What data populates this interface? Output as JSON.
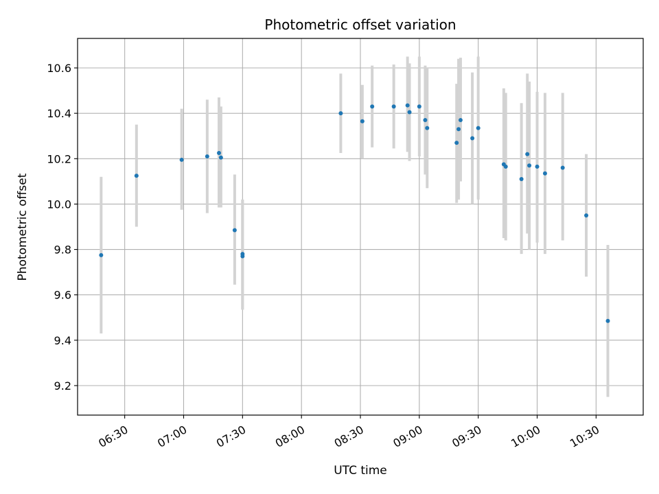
{
  "chart_data": {
    "type": "scatter",
    "title": "Photometric offset variation",
    "xlabel": "UTC time",
    "ylabel": "Photometric offset",
    "grid": true,
    "xlim": [
      "06:06",
      "10:54"
    ],
    "ylim": [
      9.07,
      10.73
    ],
    "x_ticks": [
      "06:30",
      "07:00",
      "07:30",
      "08:00",
      "08:30",
      "09:00",
      "09:30",
      "10:00",
      "10:30"
    ],
    "y_ticks": [
      9.2,
      9.4,
      9.6,
      9.8,
      10.0,
      10.2,
      10.4,
      10.6
    ],
    "colors": {
      "points": "#1f77b4",
      "errorbars": "#d3d3d3",
      "grid": "#b0b0b0"
    },
    "points": [
      {
        "x": "06:18",
        "y": 9.775,
        "ylo": 9.43,
        "yhi": 10.12
      },
      {
        "x": "06:36",
        "y": 10.125,
        "ylo": 9.9,
        "yhi": 10.35
      },
      {
        "x": "06:59",
        "y": 10.195,
        "ylo": 9.975,
        "yhi": 10.42
      },
      {
        "x": "07:12",
        "y": 10.21,
        "ylo": 9.96,
        "yhi": 10.46
      },
      {
        "x": "07:18",
        "y": 10.225,
        "ylo": 9.985,
        "yhi": 10.47
      },
      {
        "x": "07:19",
        "y": 10.205,
        "ylo": 9.985,
        "yhi": 10.43
      },
      {
        "x": "07:26",
        "y": 9.885,
        "ylo": 9.645,
        "yhi": 10.13
      },
      {
        "x": "07:30",
        "y": 9.78,
        "ylo": 9.535,
        "yhi": 10.02
      },
      {
        "x": "07:30",
        "y": 9.77,
        "ylo": 9.535,
        "yhi": 10.02
      },
      {
        "x": "08:20",
        "y": 10.4,
        "ylo": 10.225,
        "yhi": 10.575
      },
      {
        "x": "08:31",
        "y": 10.365,
        "ylo": 10.2,
        "yhi": 10.525
      },
      {
        "x": "08:36",
        "y": 10.43,
        "ylo": 10.25,
        "yhi": 10.61
      },
      {
        "x": "08:47",
        "y": 10.43,
        "ylo": 10.245,
        "yhi": 10.615
      },
      {
        "x": "08:54",
        "y": 10.435,
        "ylo": 10.23,
        "yhi": 10.65
      },
      {
        "x": "08:55",
        "y": 10.405,
        "ylo": 10.19,
        "yhi": 10.62
      },
      {
        "x": "09:00",
        "y": 10.43,
        "ylo": 10.21,
        "yhi": 10.65
      },
      {
        "x": "09:03",
        "y": 10.37,
        "ylo": 10.13,
        "yhi": 10.61
      },
      {
        "x": "09:04",
        "y": 10.335,
        "ylo": 10.07,
        "yhi": 10.6
      },
      {
        "x": "09:19",
        "y": 10.27,
        "ylo": 10.005,
        "yhi": 10.53
      },
      {
        "x": "09:20",
        "y": 10.33,
        "ylo": 10.02,
        "yhi": 10.64
      },
      {
        "x": "09:21",
        "y": 10.37,
        "ylo": 10.1,
        "yhi": 10.645
      },
      {
        "x": "09:27",
        "y": 10.29,
        "ylo": 10.0,
        "yhi": 10.58
      },
      {
        "x": "09:30",
        "y": 10.335,
        "ylo": 10.02,
        "yhi": 10.65
      },
      {
        "x": "09:43",
        "y": 10.175,
        "ylo": 9.85,
        "yhi": 10.51
      },
      {
        "x": "09:44",
        "y": 10.165,
        "ylo": 9.84,
        "yhi": 10.49
      },
      {
        "x": "09:52",
        "y": 10.11,
        "ylo": 9.78,
        "yhi": 10.445
      },
      {
        "x": "09:55",
        "y": 10.22,
        "ylo": 9.87,
        "yhi": 10.575
      },
      {
        "x": "09:56",
        "y": 10.17,
        "ylo": 9.8,
        "yhi": 10.54
      },
      {
        "x": "10:00",
        "y": 10.165,
        "ylo": 9.83,
        "yhi": 10.495
      },
      {
        "x": "10:04",
        "y": 10.135,
        "ylo": 9.78,
        "yhi": 10.49
      },
      {
        "x": "10:13",
        "y": 10.16,
        "ylo": 9.84,
        "yhi": 10.49
      },
      {
        "x": "10:25",
        "y": 9.95,
        "ylo": 9.68,
        "yhi": 10.22
      },
      {
        "x": "10:36",
        "y": 9.485,
        "ylo": 9.15,
        "yhi": 9.82
      }
    ]
  }
}
